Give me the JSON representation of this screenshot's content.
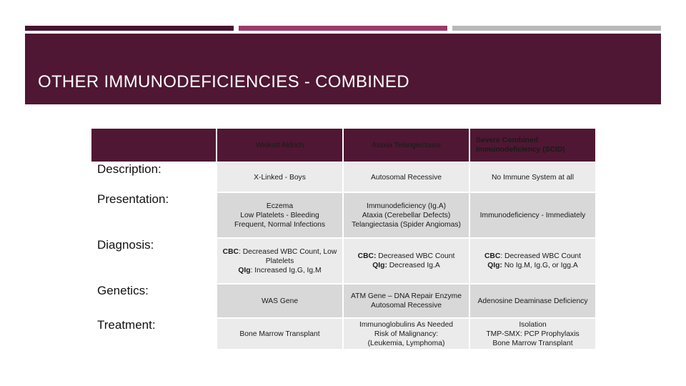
{
  "accent_bars": [
    {
      "color": "#4a1230"
    },
    {
      "color": "#9c3a6a"
    },
    {
      "color": "#b9b9b9"
    }
  ],
  "header": {
    "title": "OTHER IMMUNODEFICIENCIES - COMBINED",
    "background": "#4f1733"
  },
  "table": {
    "columns": [
      "Wiskott Aldrich",
      "Ataxia Telangiectasia",
      "Severe Combined Immunodeficiency (SCID)"
    ],
    "rows": [
      {
        "label": "Description:",
        "cells": [
          [
            "X-Linked - Boys"
          ],
          [
            "Autosomal Recessive"
          ],
          [
            "No Immune System at all"
          ]
        ]
      },
      {
        "label": "Presentation:",
        "cells": [
          [
            "Eczema",
            "Low Platelets - Bleeding",
            "Frequent, Normal Infections"
          ],
          [
            "Immunodeficiency (Ig.A)",
            "Ataxia (Cerebellar Defects)",
            "Telangiectasia (Spider Angiomas)"
          ],
          [
            "Immunodeficiency - Immediately"
          ]
        ]
      },
      {
        "label": "Diagnosis:",
        "cells": [
          [
            {
              "b": "CBC",
              "t": ": Decreased WBC Count, Low Platelets"
            },
            {
              "b": "QIg",
              "t": ": Increased Ig.G, Ig.M"
            }
          ],
          [
            {
              "b": "CBC:",
              "t": " Decreased WBC Count"
            },
            {
              "b": "QIg:",
              "t": " Decreased Ig.A"
            }
          ],
          [
            {
              "b": "CBC",
              "t": ": Decreased WBC Count"
            },
            {
              "b": "QIg:",
              "t": " No Ig.M, Ig.G, or Igg.A"
            }
          ]
        ]
      },
      {
        "label": "Genetics:",
        "cells": [
          [
            "WAS Gene"
          ],
          [
            "ATM Gene – DNA Repair Enzyme",
            "Autosomal Recessive"
          ],
          [
            "Adenosine Deaminase Deficiency"
          ]
        ]
      },
      {
        "label": "Treatment:",
        "cells": [
          [
            "Bone Marrow Transplant"
          ],
          [
            "Immunoglobulins As Needed",
            "Risk of Malignancy:",
            "(Leukemia, Lymphoma)"
          ],
          [
            "Isolation",
            "TMP-SMX: PCP Prophylaxis",
            "Bone Marrow Transplant"
          ]
        ]
      }
    ]
  }
}
